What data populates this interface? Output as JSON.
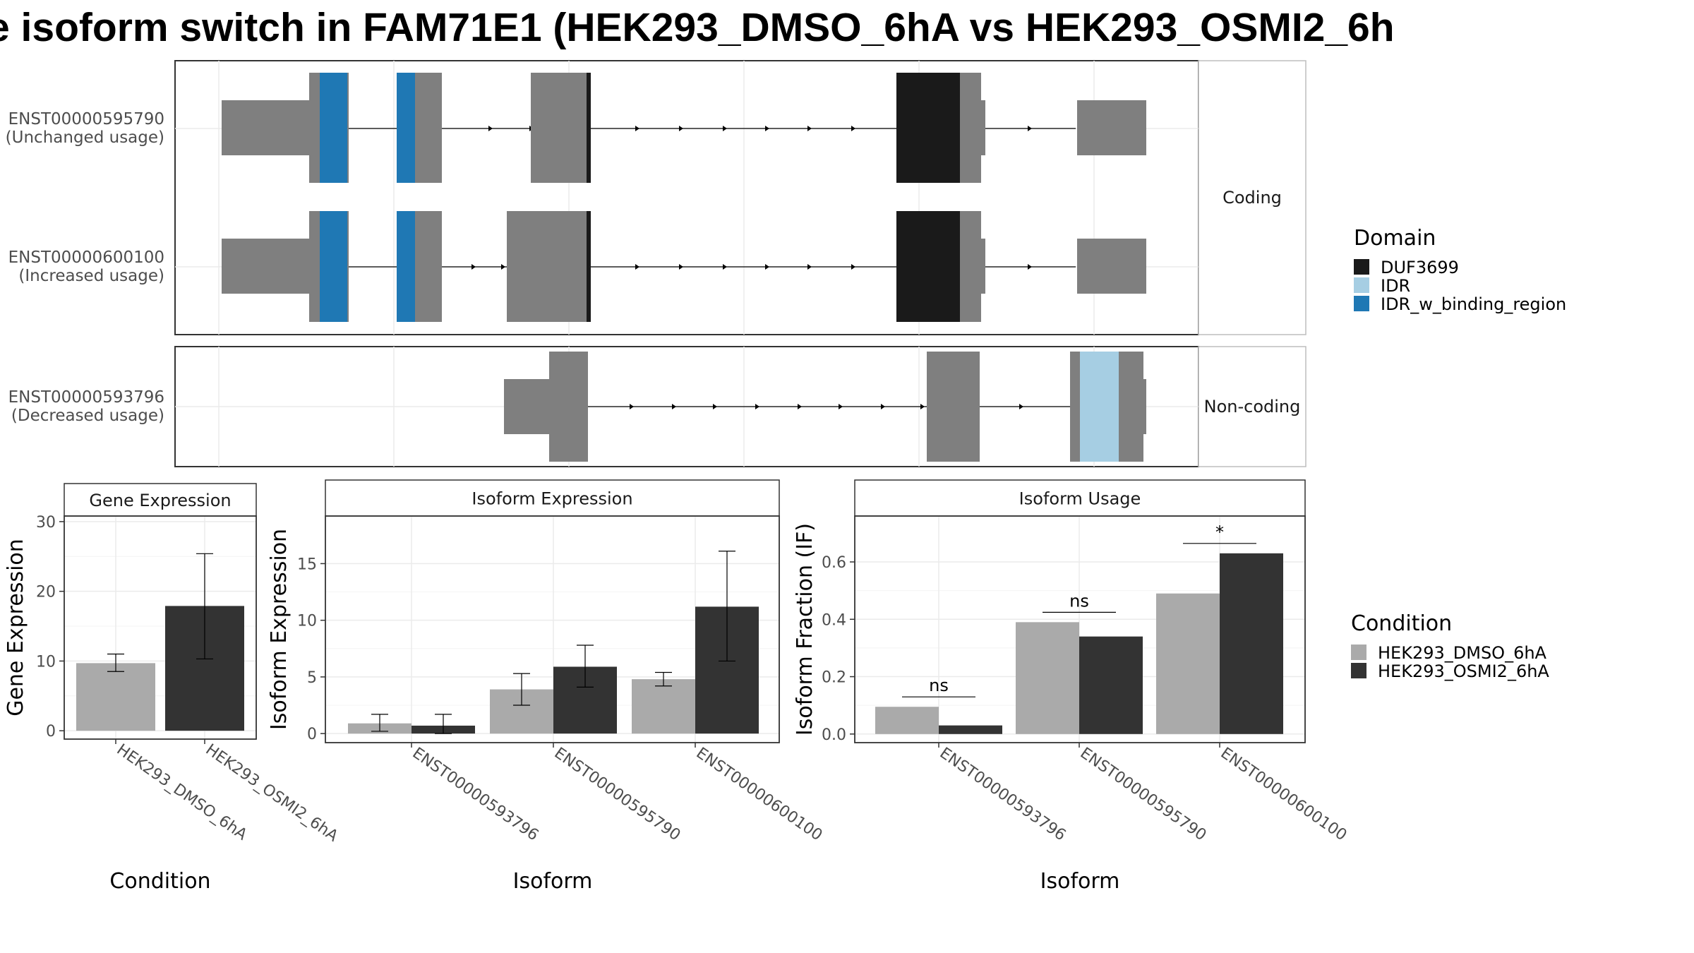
{
  "title": "e isoform switch in FAM71E1 (HEK293_DMSO_6hA vs HEK293_OSMI2_6h",
  "colors": {
    "exon": "#7f7f7f",
    "DUF3699": "#1a1a1a",
    "IDR": "#a6cee3",
    "IDR_w_binding_region": "#1f78b4",
    "HEK293_DMSO_6hA": "#aaaaaa",
    "HEK293_OSMI2_6hA": "#333333"
  },
  "structure": {
    "coding_strip": "Coding",
    "noncoding_strip": "Non-coding",
    "isoforms": [
      {
        "id": "ENST00000595790",
        "note": "(Unchanged usage)"
      },
      {
        "id": "ENST00000600100",
        "note": "(Increased usage)"
      },
      {
        "id": "ENST00000593796",
        "note": "(Decreased usage)"
      }
    ]
  },
  "domain_legend": {
    "title": "Domain",
    "items": [
      "DUF3699",
      "IDR",
      "IDR_w_binding_region"
    ]
  },
  "condition_legend": {
    "title": "Condition",
    "items": [
      "HEK293_DMSO_6hA",
      "HEK293_OSMI2_6hA"
    ]
  },
  "chart_data": [
    {
      "type": "bar",
      "strip": "Gene Expression",
      "xlabel": "Condition",
      "ylabel": "Gene Expression",
      "categories": [
        "HEK293_DMSO_6hA",
        "HEK293_OSMI2_6hA"
      ],
      "values": [
        9.7,
        17.9
      ],
      "err_low": [
        8.5,
        10.3
      ],
      "err_high": [
        11.0,
        25.4
      ],
      "yticks": [
        0,
        10,
        20,
        30
      ],
      "ylim": [
        -1.2,
        30.8
      ]
    },
    {
      "type": "bar",
      "strip": "Isoform Expression",
      "xlabel": "Isoform",
      "ylabel": "Isoform Expression",
      "categories": [
        "ENST00000593796",
        "ENST00000595790",
        "ENST00000600100"
      ],
      "series": [
        {
          "name": "HEK293_DMSO_6hA",
          "values": [
            0.9,
            3.9,
            4.8
          ],
          "err_low": [
            0.2,
            2.5,
            4.2
          ],
          "err_high": [
            1.7,
            5.3,
            5.4
          ]
        },
        {
          "name": "HEK293_OSMI2_6hA",
          "values": [
            0.7,
            5.9,
            11.2
          ],
          "err_low": [
            0.0,
            4.1,
            6.4
          ],
          "err_high": [
            1.7,
            7.8,
            16.1
          ]
        }
      ],
      "yticks": [
        0,
        5,
        10,
        15
      ],
      "ylim": [
        -0.8,
        19.2
      ]
    },
    {
      "type": "bar",
      "strip": "Isoform Usage",
      "xlabel": "Isoform",
      "ylabel": "Isoform Fraction (IF)",
      "categories": [
        "ENST00000593796",
        "ENST00000595790",
        "ENST00000600100"
      ],
      "series": [
        {
          "name": "HEK293_DMSO_6hA",
          "values": [
            0.095,
            0.39,
            0.49
          ]
        },
        {
          "name": "HEK293_OSMI2_6hA",
          "values": [
            0.03,
            0.34,
            0.63
          ]
        }
      ],
      "significance": [
        "ns",
        "ns",
        "*"
      ],
      "yticks": [
        "0.0",
        "0.2",
        "0.4",
        "0.6"
      ],
      "ylim": [
        -0.03,
        0.76
      ]
    }
  ]
}
